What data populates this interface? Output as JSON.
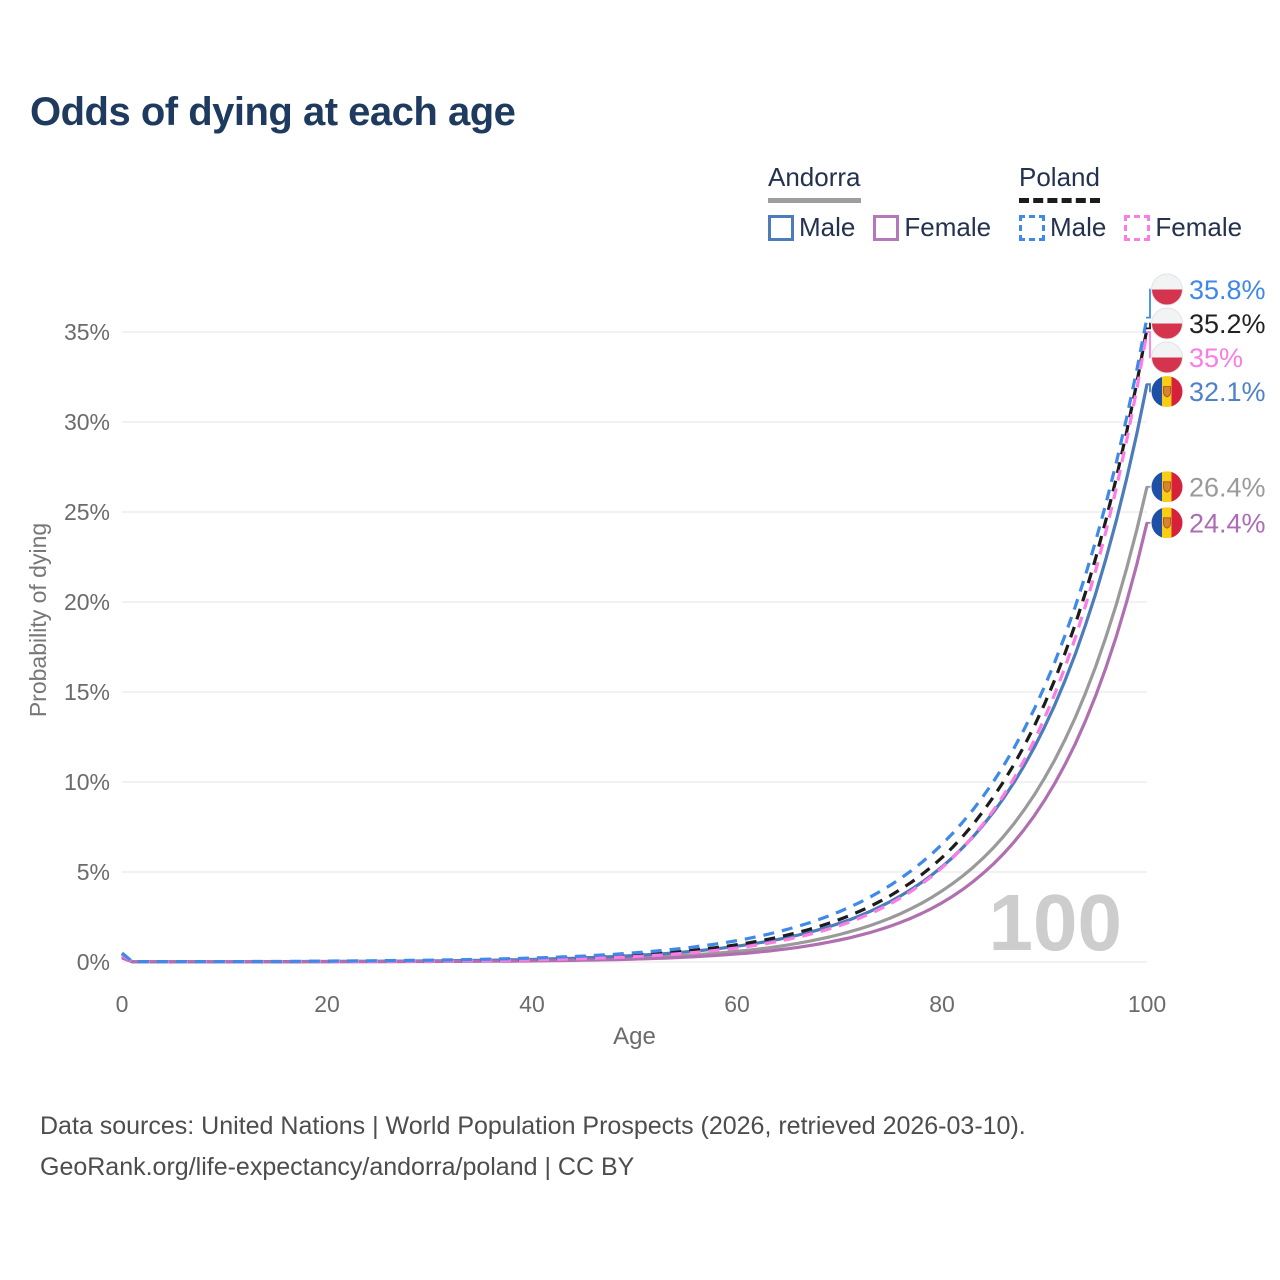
{
  "title": "Odds of dying at each age",
  "legend": {
    "groups": [
      {
        "label": "Andorra",
        "line_color": "#9e9e9e",
        "line_style": "solid",
        "items": [
          {
            "label": "Male",
            "color": "#4d7cba",
            "dash": false
          },
          {
            "label": "Female",
            "color": "#b379b8",
            "dash": false
          }
        ]
      },
      {
        "label": "Poland",
        "line_color": "#1c1c1c",
        "line_style": "dashed",
        "items": [
          {
            "label": "Male",
            "color": "#3f8ae8",
            "dash": true
          },
          {
            "label": "Female",
            "color": "#fb7ce3",
            "dash": true
          }
        ]
      }
    ]
  },
  "chart_data": {
    "type": "line",
    "title": "Odds of dying at each age",
    "xlabel": "Age",
    "ylabel": "Probability of dying",
    "x_ticks": [
      0,
      20,
      40,
      60,
      80,
      100
    ],
    "y_ticks": [
      "0%",
      "5%",
      "10%",
      "15%",
      "20%",
      "25%",
      "30%",
      "35%"
    ],
    "xlim": [
      0,
      100
    ],
    "ylim_pct": [
      0,
      37.5
    ],
    "grid": "horizontal",
    "legend_position": "top-right",
    "watermark": "100",
    "x": [
      0,
      1,
      5,
      10,
      15,
      20,
      25,
      30,
      35,
      40,
      45,
      50,
      55,
      60,
      65,
      70,
      75,
      80,
      85,
      90,
      95,
      100
    ],
    "series": [
      {
        "id": "andorra-total",
        "name": "Andorra",
        "country": "Andorra",
        "sex": "both",
        "color": "#9a9a9a",
        "dash": false,
        "flag": "andorra",
        "end_label": "26.4%",
        "label_color": "#9a9a9a",
        "values": [
          0.26,
          0.01,
          0.01,
          0.01,
          0.02,
          0.02,
          0.03,
          0.04,
          0.06,
          0.09,
          0.14,
          0.23,
          0.37,
          0.59,
          0.95,
          1.53,
          2.45,
          3.95,
          6.34,
          10.21,
          16.43,
          26.4
        ]
      },
      {
        "id": "andorra-male",
        "name": "Andorra Male",
        "country": "Andorra",
        "sex": "male",
        "color": "#4d7cba",
        "dash": false,
        "flag": "andorra",
        "end_label": "32.1%",
        "label_color": "#4e82c8",
        "values": [
          0.3,
          0.01,
          0.01,
          0.01,
          0.02,
          0.03,
          0.04,
          0.06,
          0.09,
          0.14,
          0.23,
          0.36,
          0.56,
          0.88,
          1.37,
          2.15,
          3.37,
          5.29,
          8.31,
          13.05,
          20.49,
          32.1
        ]
      },
      {
        "id": "andorra-female",
        "name": "Andorra Female",
        "country": "Andorra",
        "sex": "female",
        "color": "#b06fb0",
        "dash": false,
        "flag": "andorra",
        "end_label": "24.4%",
        "label_color": "#ab6cb5",
        "values": [
          0.22,
          0.01,
          0.01,
          0.01,
          0.01,
          0.02,
          0.02,
          0.03,
          0.04,
          0.06,
          0.1,
          0.16,
          0.27,
          0.45,
          0.74,
          1.22,
          2.0,
          3.29,
          5.44,
          8.98,
          14.81,
          24.4
        ]
      },
      {
        "id": "poland-total",
        "name": "Poland",
        "country": "Poland",
        "sex": "both",
        "color": "#1c1c1c",
        "dash": true,
        "flag": "poland",
        "end_label": "35.2%",
        "label_color": "#222222",
        "values": [
          0.45,
          0.02,
          0.02,
          0.02,
          0.02,
          0.03,
          0.04,
          0.06,
          0.1,
          0.16,
          0.25,
          0.39,
          0.61,
          0.96,
          1.51,
          2.36,
          3.7,
          5.8,
          9.16,
          14.33,
          22.46,
          35.2
        ]
      },
      {
        "id": "poland-female",
        "name": "Poland Female",
        "country": "Poland",
        "sex": "female",
        "color": "#fb7ce3",
        "dash": true,
        "flag": "poland",
        "end_label": "35%",
        "label_color": "#fb7ce3",
        "values": [
          0.4,
          0.01,
          0.01,
          0.01,
          0.02,
          0.02,
          0.03,
          0.05,
          0.07,
          0.12,
          0.19,
          0.3,
          0.49,
          0.78,
          1.26,
          2.02,
          3.25,
          5.24,
          8.42,
          13.54,
          21.77,
          35.0
        ]
      },
      {
        "id": "poland-male",
        "name": "Poland Male",
        "country": "Poland",
        "sex": "male",
        "color": "#3f8ae8",
        "dash": true,
        "flag": "poland",
        "end_label": "35.8%",
        "label_color": "#3f87e8",
        "values": [
          0.5,
          0.02,
          0.02,
          0.02,
          0.03,
          0.05,
          0.07,
          0.1,
          0.15,
          0.22,
          0.33,
          0.51,
          0.78,
          1.19,
          1.83,
          2.8,
          4.28,
          6.54,
          10.01,
          15.3,
          23.41,
          35.8
        ]
      }
    ]
  },
  "footer": {
    "line1": "Data sources: United Nations | World Population Prospects (2026, retrieved 2026-03-10).",
    "line2": "GeoRank.org/life-expectancy/andorra/poland | CC BY"
  }
}
